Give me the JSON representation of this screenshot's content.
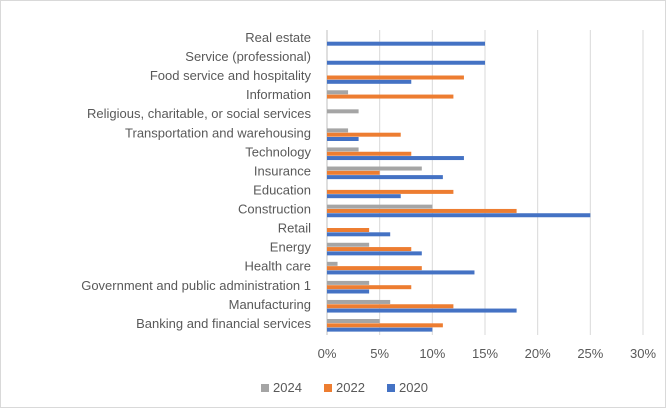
{
  "chart_data": {
    "type": "bar",
    "orientation": "horizontal",
    "title": "",
    "xlabel": "",
    "ylabel": "",
    "categories": [
      "Real estate",
      "Service (professional)",
      "Food service and hospitality",
      "Information",
      "Religious, charitable, or social services",
      "Transportation and warehousing",
      "Technology",
      "Insurance",
      "Education",
      "Construction",
      "Retail",
      "Energy",
      "Health care",
      "Government and public administration 1",
      "Manufacturing",
      "Banking and financial services"
    ],
    "series": [
      {
        "name": "2024",
        "color": "#a5a5a5",
        "values": [
          0,
          0,
          0,
          2,
          3,
          2,
          3,
          9,
          0,
          10,
          0,
          4,
          1,
          4,
          6,
          5
        ]
      },
      {
        "name": "2022",
        "color": "#ed7d31",
        "values": [
          0,
          0,
          13,
          12,
          0,
          7,
          8,
          5,
          12,
          18,
          4,
          8,
          9,
          8,
          12,
          11
        ]
      },
      {
        "name": "2020",
        "color": "#4472c4",
        "values": [
          15,
          15,
          8,
          0,
          0,
          3,
          13,
          11,
          7,
          25,
          6,
          9,
          14,
          4,
          18,
          10
        ]
      }
    ],
    "xlim": [
      0,
      30
    ],
    "xticks": [
      "0%",
      "5%",
      "10%",
      "15%",
      "20%",
      "25%",
      "30%"
    ],
    "grid": true,
    "legend_position": "bottom"
  }
}
